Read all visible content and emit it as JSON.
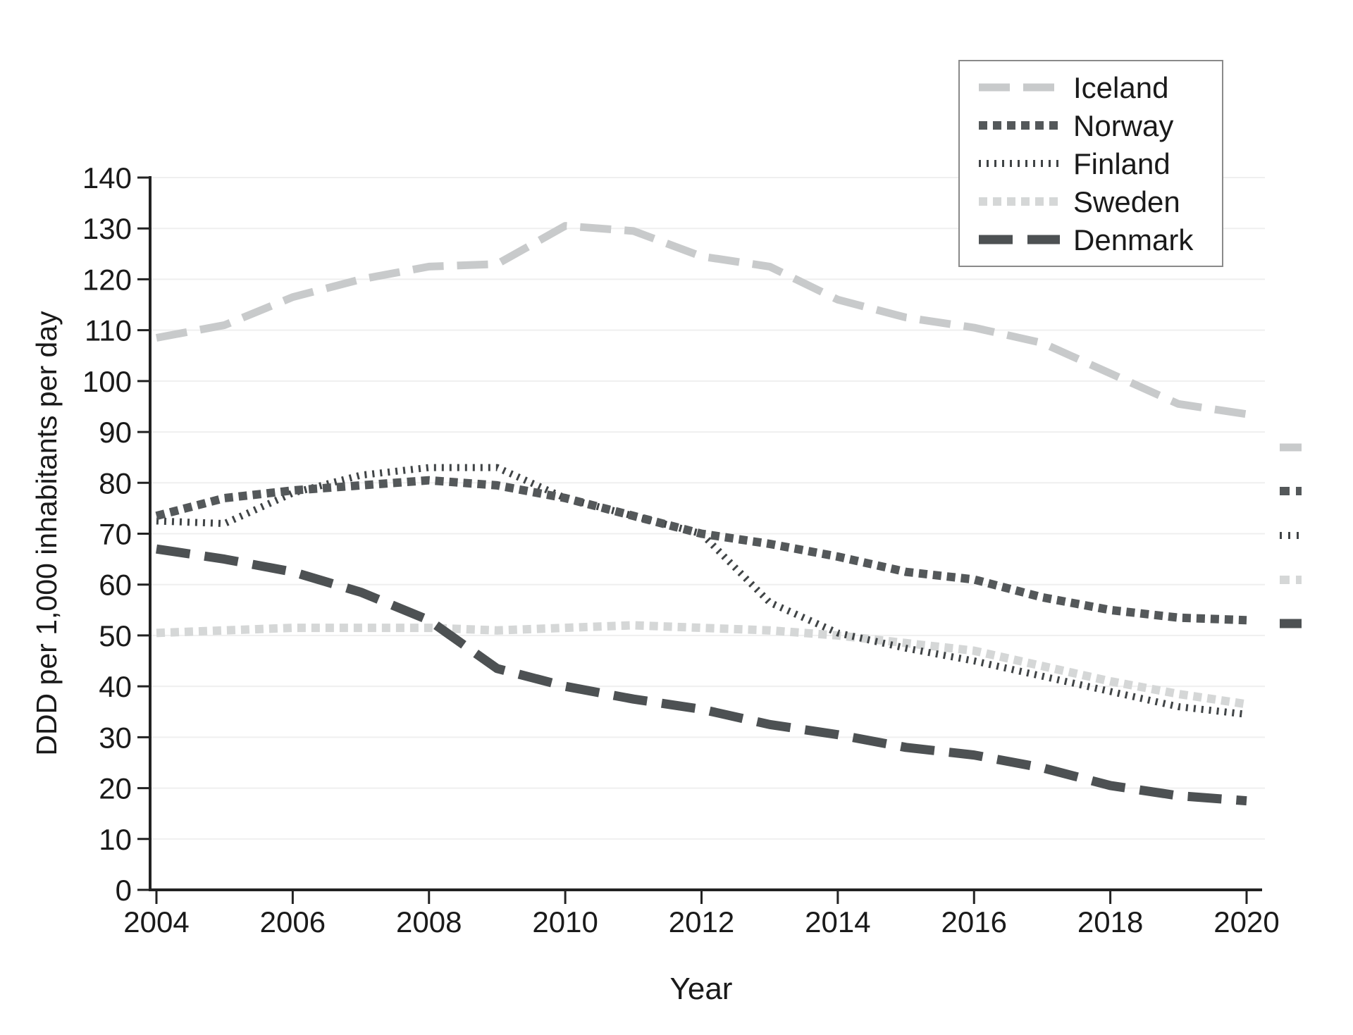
{
  "chart_data": {
    "type": "line",
    "title": "",
    "xlabel": "Year",
    "ylabel": "DDD per 1,000 inhabitants per day",
    "x": [
      2004,
      2005,
      2006,
      2007,
      2008,
      2009,
      2010,
      2011,
      2012,
      2013,
      2014,
      2015,
      2016,
      2017,
      2018,
      2019,
      2020
    ],
    "series": [
      {
        "name": "Iceland",
        "color": "#c8cacb",
        "dash": "long-dash",
        "width": 11,
        "values": [
          108.5,
          111,
          116.5,
          120,
          122.5,
          123,
          130.5,
          129.5,
          124.5,
          122.5,
          116,
          112.5,
          110.5,
          107.5,
          101.5,
          95.5,
          93.5
        ]
      },
      {
        "name": "Norway",
        "color": "#54585a",
        "dash": "square-dot",
        "width": 12,
        "values": [
          73.5,
          77,
          78.5,
          79.5,
          80.5,
          79.5,
          77,
          73.5,
          70,
          68,
          65.5,
          62.5,
          61,
          57.5,
          55,
          53.5,
          53
        ]
      },
      {
        "name": "Finland",
        "color": "#404446",
        "dash": "dot",
        "width": 10,
        "values": [
          72.5,
          72,
          78,
          81.5,
          83,
          83,
          77,
          73.5,
          70,
          56.5,
          50.5,
          47.5,
          45,
          42,
          39,
          36,
          34.5
        ]
      },
      {
        "name": "Sweden",
        "color": "#d5d7d7",
        "dash": "square-dot",
        "width": 12,
        "values": [
          50.5,
          51,
          51.5,
          51.5,
          51.5,
          51,
          51.5,
          52,
          51.5,
          51,
          50,
          48.5,
          47,
          44,
          41,
          38.5,
          36.5
        ]
      },
      {
        "name": "Denmark",
        "color": "#4d5153",
        "dash": "long-dash",
        "width": 13,
        "values": [
          67,
          65,
          62.5,
          58.5,
          53,
          43.5,
          40,
          37.5,
          35.5,
          32.5,
          30.5,
          28,
          26.5,
          24,
          20.5,
          18.5,
          17.5
        ]
      }
    ],
    "ylim": [
      0,
      140
    ],
    "yticks": [
      0,
      10,
      20,
      30,
      40,
      50,
      60,
      70,
      80,
      90,
      100,
      110,
      120,
      130,
      140
    ],
    "xticks": [
      2004,
      2006,
      2008,
      2010,
      2012,
      2014,
      2016,
      2018,
      2020
    ],
    "grid": "horizontal",
    "gridline_color": "#efefef",
    "axis_color": "#222222",
    "text_color": "#1a1a1a",
    "legend_position": "top-right",
    "legend_order": [
      "Iceland",
      "Norway",
      "Finland",
      "Sweden",
      "Denmark"
    ],
    "right_edge_samples": [
      "Iceland",
      "Norway",
      "Finland",
      "Sweden",
      "Denmark"
    ]
  }
}
